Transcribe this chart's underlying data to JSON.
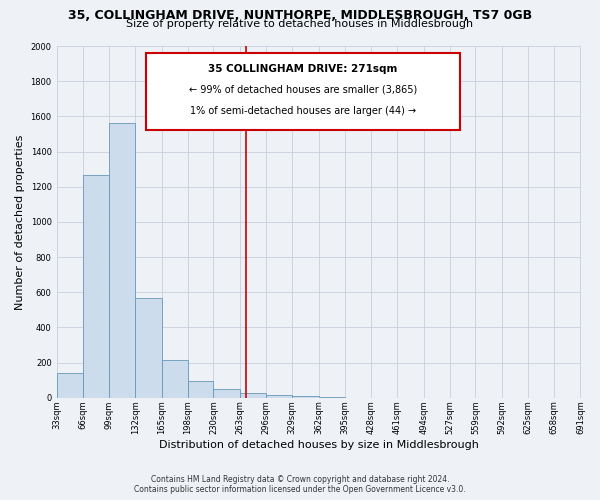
{
  "title": "35, COLLINGHAM DRIVE, NUNTHORPE, MIDDLESBROUGH, TS7 0GB",
  "subtitle": "Size of property relative to detached houses in Middlesbrough",
  "xlabel": "Distribution of detached houses by size in Middlesbrough",
  "ylabel": "Number of detached properties",
  "bar_left_edges": [
    33,
    66,
    99,
    132,
    165,
    198,
    230,
    263,
    296,
    329,
    362,
    395,
    428,
    461,
    494,
    527,
    559,
    592,
    625,
    658
  ],
  "bar_right_edges": [
    66,
    99,
    132,
    165,
    198,
    230,
    263,
    296,
    329,
    362,
    395,
    428,
    461,
    494,
    527,
    559,
    592,
    625,
    658,
    691
  ],
  "bar_heights": [
    140,
    1265,
    1565,
    570,
    215,
    95,
    50,
    30,
    15,
    10,
    3,
    0,
    0,
    0,
    0,
    0,
    0,
    0,
    0,
    0
  ],
  "bar_color": "#ccdcec",
  "bar_edge_color": "#6699bb",
  "vline_x": 271,
  "vline_color": "#cc0000",
  "annotation_title": "35 COLLINGHAM DRIVE: 271sqm",
  "annotation_line1": "← 99% of detached houses are smaller (3,865)",
  "annotation_line2": "1% of semi-detached houses are larger (44) →",
  "ylim": [
    0,
    2000
  ],
  "yticks": [
    0,
    200,
    400,
    600,
    800,
    1000,
    1200,
    1400,
    1600,
    1800,
    2000
  ],
  "xlim_min": 33,
  "xlim_max": 691,
  "tick_positions": [
    33,
    66,
    99,
    132,
    165,
    198,
    230,
    263,
    296,
    329,
    362,
    395,
    428,
    461,
    494,
    527,
    559,
    592,
    625,
    658,
    691
  ],
  "tick_labels": [
    "33sqm",
    "66sqm",
    "99sqm",
    "132sqm",
    "165sqm",
    "198sqm",
    "230sqm",
    "263sqm",
    "296sqm",
    "329sqm",
    "362sqm",
    "395sqm",
    "428sqm",
    "461sqm",
    "494sqm",
    "527sqm",
    "559sqm",
    "592sqm",
    "625sqm",
    "658sqm",
    "691sqm"
  ],
  "footer_line1": "Contains HM Land Registry data © Crown copyright and database right 2024.",
  "footer_line2": "Contains public sector information licensed under the Open Government Licence v3.0.",
  "bg_color": "#eef2f7",
  "plot_bg_color": "#eef2f7",
  "grid_color": "#c8d0dc",
  "title_fontsize": 9,
  "subtitle_fontsize": 8,
  "ylabel_fontsize": 8,
  "xlabel_fontsize": 8
}
